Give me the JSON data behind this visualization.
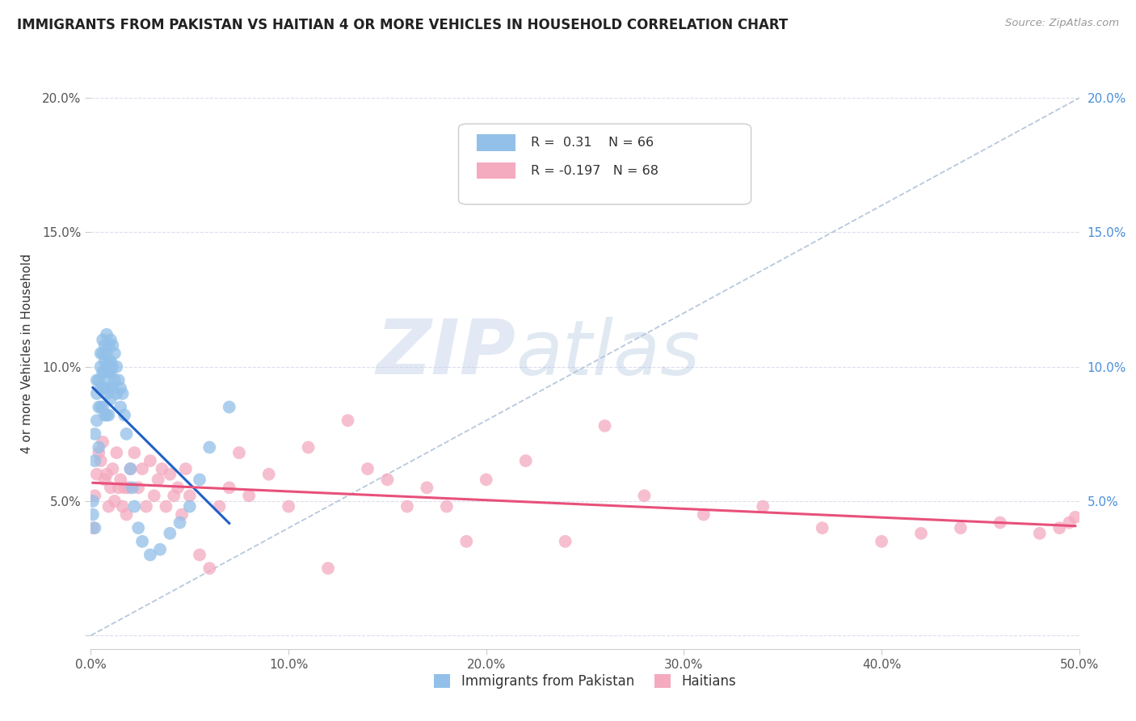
{
  "title": "IMMIGRANTS FROM PAKISTAN VS HAITIAN 4 OR MORE VEHICLES IN HOUSEHOLD CORRELATION CHART",
  "source": "Source: ZipAtlas.com",
  "ylabel": "4 or more Vehicles in Household",
  "xlim": [
    0.0,
    0.5
  ],
  "ylim": [
    -0.005,
    0.215
  ],
  "xticks": [
    0.0,
    0.1,
    0.2,
    0.3,
    0.4,
    0.5
  ],
  "yticks": [
    0.0,
    0.05,
    0.1,
    0.15,
    0.2
  ],
  "xticklabels": [
    "0.0%",
    "10.0%",
    "20.0%",
    "30.0%",
    "40.0%",
    "50.0%"
  ],
  "yticklabels": [
    "",
    "5.0%",
    "10.0%",
    "15.0%",
    "20.0%"
  ],
  "right_yticklabels": [
    "",
    "5.0%",
    "10.0%",
    "15.0%",
    "20.0%"
  ],
  "blue_R": 0.31,
  "blue_N": 66,
  "pink_R": -0.197,
  "pink_N": 68,
  "blue_color": "#92C0E8",
  "pink_color": "#F4AABF",
  "blue_line_color": "#2060C8",
  "pink_line_color": "#E8507A",
  "grid_color": "#DDDDEE",
  "watermark_zip": "ZIP",
  "watermark_atlas": "atlas",
  "blue_scatter_x": [
    0.001,
    0.001,
    0.002,
    0.002,
    0.002,
    0.003,
    0.003,
    0.003,
    0.004,
    0.004,
    0.004,
    0.005,
    0.005,
    0.005,
    0.005,
    0.006,
    0.006,
    0.006,
    0.006,
    0.006,
    0.007,
    0.007,
    0.007,
    0.007,
    0.007,
    0.008,
    0.008,
    0.008,
    0.008,
    0.008,
    0.008,
    0.009,
    0.009,
    0.009,
    0.009,
    0.009,
    0.01,
    0.01,
    0.01,
    0.01,
    0.011,
    0.011,
    0.011,
    0.012,
    0.012,
    0.013,
    0.013,
    0.014,
    0.015,
    0.015,
    0.016,
    0.017,
    0.018,
    0.02,
    0.021,
    0.022,
    0.024,
    0.026,
    0.03,
    0.035,
    0.04,
    0.045,
    0.05,
    0.055,
    0.06,
    0.07
  ],
  "blue_scatter_y": [
    0.05,
    0.045,
    0.075,
    0.065,
    0.04,
    0.095,
    0.09,
    0.08,
    0.095,
    0.085,
    0.07,
    0.105,
    0.1,
    0.092,
    0.085,
    0.11,
    0.105,
    0.098,
    0.092,
    0.085,
    0.108,
    0.102,
    0.098,
    0.092,
    0.082,
    0.112,
    0.105,
    0.1,
    0.095,
    0.09,
    0.082,
    0.108,
    0.102,
    0.098,
    0.092,
    0.082,
    0.11,
    0.102,
    0.098,
    0.088,
    0.108,
    0.1,
    0.092,
    0.105,
    0.095,
    0.1,
    0.09,
    0.095,
    0.092,
    0.085,
    0.09,
    0.082,
    0.075,
    0.062,
    0.055,
    0.048,
    0.04,
    0.035,
    0.03,
    0.032,
    0.038,
    0.042,
    0.048,
    0.058,
    0.07,
    0.085
  ],
  "pink_scatter_x": [
    0.001,
    0.002,
    0.003,
    0.004,
    0.005,
    0.006,
    0.007,
    0.008,
    0.009,
    0.01,
    0.011,
    0.012,
    0.013,
    0.014,
    0.015,
    0.016,
    0.017,
    0.018,
    0.019,
    0.02,
    0.022,
    0.024,
    0.026,
    0.028,
    0.03,
    0.032,
    0.034,
    0.036,
    0.038,
    0.04,
    0.042,
    0.044,
    0.046,
    0.048,
    0.05,
    0.055,
    0.06,
    0.065,
    0.07,
    0.075,
    0.08,
    0.09,
    0.1,
    0.11,
    0.12,
    0.13,
    0.14,
    0.15,
    0.16,
    0.17,
    0.18,
    0.19,
    0.2,
    0.22,
    0.24,
    0.26,
    0.28,
    0.31,
    0.34,
    0.37,
    0.4,
    0.42,
    0.44,
    0.46,
    0.48,
    0.49,
    0.495,
    0.498
  ],
  "pink_scatter_y": [
    0.04,
    0.052,
    0.06,
    0.068,
    0.065,
    0.072,
    0.058,
    0.06,
    0.048,
    0.055,
    0.062,
    0.05,
    0.068,
    0.055,
    0.058,
    0.048,
    0.055,
    0.045,
    0.055,
    0.062,
    0.068,
    0.055,
    0.062,
    0.048,
    0.065,
    0.052,
    0.058,
    0.062,
    0.048,
    0.06,
    0.052,
    0.055,
    0.045,
    0.062,
    0.052,
    0.03,
    0.025,
    0.048,
    0.055,
    0.068,
    0.052,
    0.06,
    0.048,
    0.07,
    0.025,
    0.08,
    0.062,
    0.058,
    0.048,
    0.055,
    0.048,
    0.035,
    0.058,
    0.065,
    0.035,
    0.078,
    0.052,
    0.045,
    0.048,
    0.04,
    0.035,
    0.038,
    0.04,
    0.042,
    0.038,
    0.04,
    0.042,
    0.044
  ]
}
